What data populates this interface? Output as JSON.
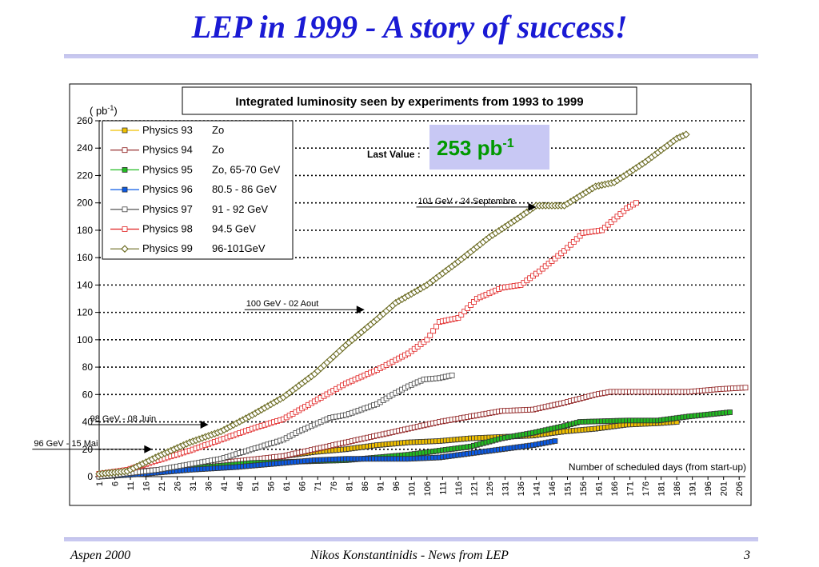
{
  "slide": {
    "title": "LEP in 1999 - A story of success!",
    "footer_left": "Aspen 2000",
    "footer_center": "Nikos Konstantinidis - News from LEP",
    "footer_right": "3"
  },
  "chart_data": {
    "type": "line",
    "title": "Integrated luminosity seen by experiments from 1993 to 1999",
    "ylabel_text": "( pb",
    "ylabel_sup": "-1",
    "ylabel_close": ")",
    "xlabel": "Number of scheduled days (from start-up)",
    "ylim": [
      0,
      260
    ],
    "yticks": [
      0,
      20,
      40,
      60,
      80,
      100,
      120,
      140,
      160,
      180,
      200,
      220,
      240,
      260
    ],
    "xlim": [
      1,
      208
    ],
    "xticks": [
      1,
      6,
      11,
      16,
      21,
      26,
      31,
      36,
      41,
      46,
      51,
      56,
      61,
      66,
      71,
      76,
      81,
      86,
      91,
      96,
      101,
      106,
      111,
      116,
      121,
      126,
      131,
      136,
      141,
      146,
      151,
      156,
      161,
      166,
      171,
      176,
      181,
      186,
      191,
      196,
      201,
      206
    ],
    "grid": "horizontal dotted",
    "legend_position": "top-left",
    "last_value": {
      "label": "Last Value :",
      "value": "253 pb",
      "sup": "-1",
      "color": "#009900",
      "background": "#c8c8f4"
    },
    "annotations": [
      {
        "text": "96 GeV - 15 Mai",
        "x": 18,
        "y": 20
      },
      {
        "text": "98 GeV - 08 Juin",
        "x": 36,
        "y": 38
      },
      {
        "text": "100 GeV  - 02 Aout",
        "x": 86,
        "y": 122
      },
      {
        "text": "101 GeV - 24 Septembre",
        "x": 141,
        "y": 197
      }
    ],
    "series": [
      {
        "name": "Physics 93",
        "energy": "Zo",
        "color": "#f0c000",
        "marker": "square",
        "points": [
          [
            1,
            0
          ],
          [
            15,
            3
          ],
          [
            30,
            6
          ],
          [
            45,
            10
          ],
          [
            60,
            15
          ],
          [
            70,
            18
          ],
          [
            80,
            20
          ],
          [
            90,
            23
          ],
          [
            100,
            25
          ],
          [
            110,
            26
          ],
          [
            120,
            28
          ],
          [
            130,
            29
          ],
          [
            140,
            30
          ],
          [
            150,
            33
          ],
          [
            160,
            35
          ],
          [
            170,
            38
          ],
          [
            180,
            39
          ],
          [
            186,
            40
          ]
        ]
      },
      {
        "name": "Physics 94",
        "energy": "Zo",
        "color": "#8b1a1a",
        "marker": "square",
        "points": [
          [
            1,
            2
          ],
          [
            20,
            5
          ],
          [
            40,
            10
          ],
          [
            60,
            15
          ],
          [
            70,
            20
          ],
          [
            80,
            25
          ],
          [
            90,
            30
          ],
          [
            100,
            35
          ],
          [
            110,
            40
          ],
          [
            120,
            44
          ],
          [
            130,
            48
          ],
          [
            140,
            49
          ],
          [
            150,
            54
          ],
          [
            160,
            60
          ],
          [
            165,
            62
          ],
          [
            190,
            62
          ],
          [
            200,
            64
          ],
          [
            208,
            65
          ]
        ]
      },
      {
        "name": "Physics 95",
        "energy": "Zo, 65-70 GeV",
        "color": "#22bb22",
        "marker": "square",
        "points": [
          [
            1,
            0
          ],
          [
            30,
            6
          ],
          [
            50,
            10
          ],
          [
            80,
            12
          ],
          [
            100,
            16
          ],
          [
            120,
            22
          ],
          [
            130,
            28
          ],
          [
            140,
            32
          ],
          [
            150,
            37
          ],
          [
            155,
            40
          ],
          [
            170,
            41
          ],
          [
            180,
            41
          ],
          [
            190,
            44
          ],
          [
            203,
            47
          ]
        ]
      },
      {
        "name": "Physics 96",
        "energy": "80.5 - 86 GeV",
        "color": "#0a5ae6",
        "marker": "square",
        "points": [
          [
            1,
            0
          ],
          [
            15,
            2
          ],
          [
            30,
            5
          ],
          [
            45,
            7
          ],
          [
            60,
            10
          ],
          [
            70,
            12
          ],
          [
            80,
            13
          ],
          [
            90,
            13
          ],
          [
            100,
            13
          ],
          [
            110,
            14
          ],
          [
            120,
            17
          ],
          [
            130,
            20
          ],
          [
            140,
            23
          ],
          [
            147,
            26
          ]
        ]
      },
      {
        "name": "Physics 97",
        "energy": "91 - 92 GeV",
        "color": "#444444",
        "marker": "square",
        "points": [
          [
            1,
            0
          ],
          [
            20,
            5
          ],
          [
            30,
            9
          ],
          [
            40,
            13
          ],
          [
            50,
            20
          ],
          [
            60,
            27
          ],
          [
            65,
            33
          ],
          [
            70,
            38
          ],
          [
            75,
            43
          ],
          [
            80,
            45
          ],
          [
            90,
            53
          ],
          [
            95,
            60
          ],
          [
            100,
            66
          ],
          [
            105,
            71
          ],
          [
            110,
            72
          ],
          [
            114,
            74
          ]
        ]
      },
      {
        "name": "Physics 98",
        "energy": "94.5 GeV",
        "color": "#e02020",
        "marker": "square",
        "points": [
          [
            1,
            2
          ],
          [
            10,
            5
          ],
          [
            20,
            12
          ],
          [
            30,
            19
          ],
          [
            40,
            27
          ],
          [
            50,
            35
          ],
          [
            60,
            42
          ],
          [
            70,
            55
          ],
          [
            80,
            68
          ],
          [
            90,
            78
          ],
          [
            100,
            90
          ],
          [
            106,
            100
          ],
          [
            110,
            113
          ],
          [
            116,
            116
          ],
          [
            122,
            130
          ],
          [
            130,
            138
          ],
          [
            136,
            140
          ],
          [
            142,
            150
          ],
          [
            150,
            165
          ],
          [
            156,
            178
          ],
          [
            162,
            180
          ],
          [
            170,
            196
          ],
          [
            173,
            200
          ]
        ]
      },
      {
        "name": "Physics 99",
        "energy": "96-101GeV",
        "color": "#6b6b22",
        "marker": "diamond",
        "points": [
          [
            1,
            2
          ],
          [
            10,
            4
          ],
          [
            20,
            15
          ],
          [
            30,
            25
          ],
          [
            40,
            33
          ],
          [
            50,
            45
          ],
          [
            60,
            58
          ],
          [
            70,
            75
          ],
          [
            80,
            96
          ],
          [
            90,
            115
          ],
          [
            96,
            127
          ],
          [
            106,
            140
          ],
          [
            116,
            157
          ],
          [
            126,
            175
          ],
          [
            136,
            190
          ],
          [
            141,
            198
          ],
          [
            150,
            198
          ],
          [
            160,
            212
          ],
          [
            166,
            215
          ],
          [
            176,
            230
          ],
          [
            186,
            247
          ],
          [
            189,
            250
          ]
        ]
      }
    ]
  }
}
